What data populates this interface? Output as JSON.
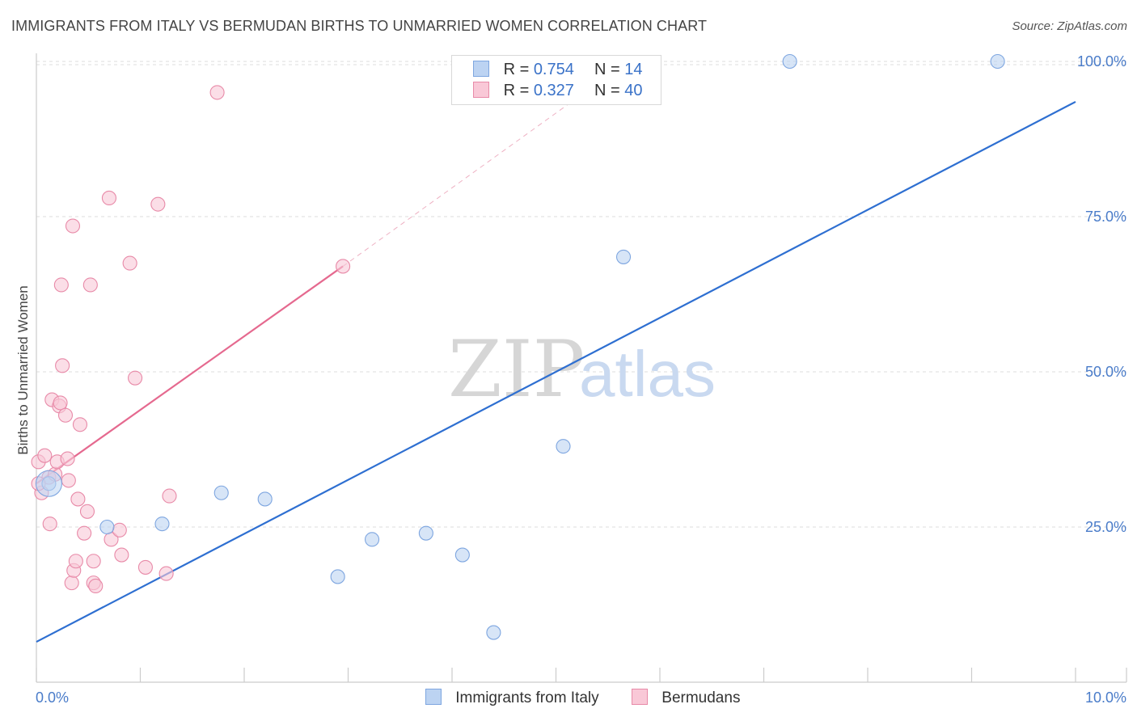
{
  "title": "IMMIGRANTS FROM ITALY VS BERMUDAN BIRTHS TO UNMARRIED WOMEN CORRELATION CHART",
  "source": "Source: ZipAtlas.com",
  "watermark": {
    "zip": "ZIP",
    "atlas": "atlas"
  },
  "legend": {
    "italy": {
      "r_label": "R =",
      "r_value": "0.754",
      "n_label": "N =",
      "n_value": "14"
    },
    "bermudans": {
      "r_label": "R =",
      "r_value": "0.327",
      "n_label": "N =",
      "n_value": "40"
    }
  },
  "bottom_legend": {
    "italy": "Immigrants from Italy",
    "bermudans": "Bermudans"
  },
  "colors": {
    "italy_fill": "#bcd3f2",
    "italy_stroke": "#7ea6e0",
    "italy_line": "#2e6fd1",
    "bermuda_fill": "#f9c8d7",
    "bermuda_stroke": "#e88aa8",
    "bermuda_line": "#e5698f"
  },
  "chart_data": {
    "type": "scatter",
    "title": "IMMIGRANTS FROM ITALY VS BERMUDAN BIRTHS TO UNMARRIED WOMEN CORRELATION CHART",
    "xlabel": "",
    "ylabel": "Births to Unmarried Women",
    "xlim": [
      0,
      10
    ],
    "ylim": [
      0,
      102
    ],
    "x_ticks": [
      "0.0%",
      "10.0%"
    ],
    "y_ticks": [
      {
        "value": 25,
        "label": "25.0%"
      },
      {
        "value": 50,
        "label": "50.0%"
      },
      {
        "value": 75,
        "label": "75.0%"
      },
      {
        "value": 100,
        "label": "100.0%"
      }
    ],
    "series": [
      {
        "name": "Immigrants from Italy",
        "points": [
          [
            0.12,
            32.0
          ],
          [
            0.68,
            25.0
          ],
          [
            1.21,
            25.5
          ],
          [
            1.78,
            30.5
          ],
          [
            2.2,
            29.5
          ],
          [
            2.9,
            17.0
          ],
          [
            3.23,
            23.0
          ],
          [
            3.75,
            24.0
          ],
          [
            4.1,
            20.5
          ],
          [
            4.4,
            8.0
          ],
          [
            5.07,
            38.0
          ],
          [
            5.65,
            68.5
          ],
          [
            7.25,
            100.0
          ],
          [
            9.25,
            100.0
          ]
        ],
        "fit": {
          "x": [
            0.0,
            10.0
          ],
          "y": [
            6.5,
            93.5
          ]
        }
      },
      {
        "name": "Bermudans",
        "points": [
          [
            0.02,
            35.5
          ],
          [
            0.05,
            30.5
          ],
          [
            0.08,
            36.5
          ],
          [
            0.12,
            33.0
          ],
          [
            0.13,
            25.5
          ],
          [
            0.15,
            45.5
          ],
          [
            0.18,
            33.5
          ],
          [
            0.2,
            35.5
          ],
          [
            0.22,
            44.5
          ],
          [
            0.23,
            45.0
          ],
          [
            0.24,
            64.0
          ],
          [
            0.25,
            51.0
          ],
          [
            0.28,
            43.0
          ],
          [
            0.3,
            36.0
          ],
          [
            0.31,
            32.5
          ],
          [
            0.34,
            16.0
          ],
          [
            0.35,
            73.5
          ],
          [
            0.36,
            18.0
          ],
          [
            0.38,
            19.5
          ],
          [
            0.4,
            29.5
          ],
          [
            0.42,
            41.5
          ],
          [
            0.46,
            24.0
          ],
          [
            0.49,
            27.5
          ],
          [
            0.52,
            64.0
          ],
          [
            0.55,
            19.5
          ],
          [
            0.55,
            16.0
          ],
          [
            0.57,
            15.5
          ],
          [
            0.7,
            78.0
          ],
          [
            0.72,
            23.0
          ],
          [
            0.8,
            24.5
          ],
          [
            0.82,
            20.5
          ],
          [
            0.9,
            67.5
          ],
          [
            0.95,
            49.0
          ],
          [
            1.05,
            18.5
          ],
          [
            1.17,
            77.0
          ],
          [
            1.25,
            17.5
          ],
          [
            1.28,
            30.0
          ],
          [
            1.74,
            95.0
          ],
          [
            2.95,
            67.0
          ],
          [
            0.02,
            32.0
          ]
        ],
        "fit": {
          "x": [
            0.0,
            2.95
          ],
          "y": [
            32.0,
            67.0
          ]
        },
        "fit_extension": {
          "x": [
            2.95,
            5.4
          ],
          "y": [
            67.0,
            96.5
          ]
        }
      }
    ]
  }
}
